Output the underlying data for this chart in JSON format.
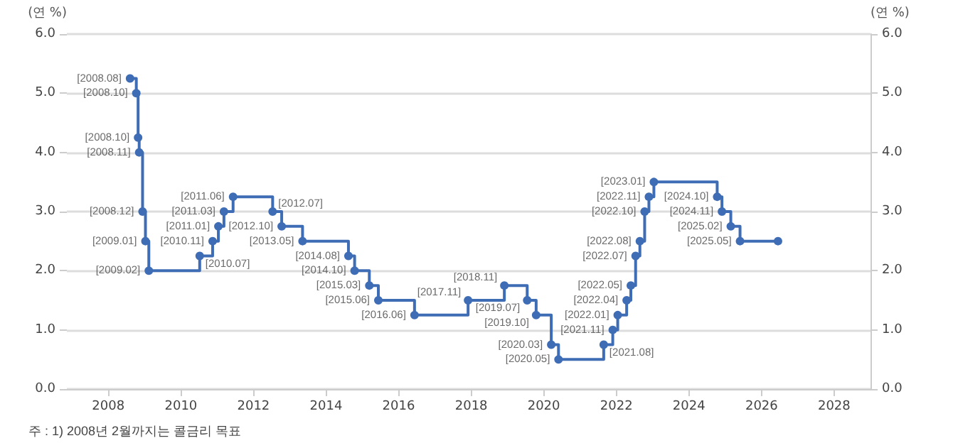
{
  "chart_data": {
    "type": "step",
    "ylabel": "(연 %)",
    "y2label": "(연 %)",
    "annotations": [
      "주 : 1) 2008년 2월까지는 콜금리 목표",
      {
        "text": "[2008.08]",
        "x": "2008-08-07",
        "y": 5.25
      },
      {
        "text": "[2008.10]",
        "x": "2008-10-09",
        "y": 5.0
      },
      {
        "text": "[2008.10]",
        "x": "2008-10-27",
        "y": 4.25
      },
      {
        "text": "[2008.11]",
        "x": "2008-11-07",
        "y": 4.0
      },
      {
        "text": "[2008.12]",
        "x": "2008-12-11",
        "y": 3.0
      },
      {
        "text": "[2009.01]",
        "x": "2009-01-09",
        "y": 2.5
      },
      {
        "text": "[2009.02]",
        "x": "2009-02-12",
        "y": 2.0
      },
      {
        "text": "[2010.07]",
        "x": "2010-07-09",
        "y": 2.25
      },
      {
        "text": "[2010.11]",
        "x": "2010-11-16",
        "y": 2.5
      },
      {
        "text": "[2011.01]",
        "x": "2011-01-13",
        "y": 2.75
      },
      {
        "text": "[2011.03]",
        "x": "2011-03-10",
        "y": 3.0
      },
      {
        "text": "[2011.06]",
        "x": "2011-06-10",
        "y": 3.25
      },
      {
        "text": "[2012.07]",
        "x": "2012-07-12",
        "y": 3.0
      },
      {
        "text": "[2012.10]",
        "x": "2012-10-11",
        "y": 2.75
      },
      {
        "text": "[2013.05]",
        "x": "2013-05-09",
        "y": 2.5
      },
      {
        "text": "[2014.08]",
        "x": "2014-08-14",
        "y": 2.25
      },
      {
        "text": "[2014.10]",
        "x": "2014-10-15",
        "y": 2.0
      },
      {
        "text": "[2015.03]",
        "x": "2015-03-12",
        "y": 1.75
      },
      {
        "text": "[2015.06]",
        "x": "2015-06-11",
        "y": 1.5
      },
      {
        "text": "[2016.06]",
        "x": "2016-06-09",
        "y": 1.25
      },
      {
        "text": "[2017.11]",
        "x": "2017-11-30",
        "y": 1.5
      },
      {
        "text": "[2018.11]",
        "x": "2018-11-30",
        "y": 1.75
      },
      {
        "text": "[2019.07]",
        "x": "2019-07-18",
        "y": 1.5
      },
      {
        "text": "[2019.10]",
        "x": "2019-10-16",
        "y": 1.25
      },
      {
        "text": "[2020.03]",
        "x": "2020-03-16",
        "y": 0.75
      },
      {
        "text": "[2020.05]",
        "x": "2020-05-28",
        "y": 0.5
      },
      {
        "text": "[2021.08]",
        "x": "2021-08-26",
        "y": 0.75
      },
      {
        "text": "[2021.11]",
        "x": "2021-11-25",
        "y": 1.0
      },
      {
        "text": "[2022.01]",
        "x": "2022-01-14",
        "y": 1.25
      },
      {
        "text": "[2022.04]",
        "x": "2022-04-14",
        "y": 1.5
      },
      {
        "text": "[2022.05]",
        "x": "2022-05-26",
        "y": 1.75
      },
      {
        "text": "[2022.07]",
        "x": "2022-07-13",
        "y": 2.25
      },
      {
        "text": "[2022.08]",
        "x": "2022-08-25",
        "y": 2.5
      },
      {
        "text": "[2022.10]",
        "x": "2022-10-12",
        "y": 3.0
      },
      {
        "text": "[2022.11]",
        "x": "2022-11-24",
        "y": 3.25
      },
      {
        "text": "[2023.01]",
        "x": "2023-01-13",
        "y": 3.5
      },
      {
        "text": "[2024.10]",
        "x": "2024-10-11",
        "y": 3.25
      },
      {
        "text": "[2024.11]",
        "x": "2024-11-28",
        "y": 3.0
      },
      {
        "text": "[2025.02]",
        "x": "2025-02-25",
        "y": 2.75
      },
      {
        "text": "[2025.05]",
        "x": "2025-05-29",
        "y": 2.5
      }
    ],
    "x": [
      "2008-08-07",
      "2008-10-09",
      "2008-10-27",
      "2008-11-07",
      "2008-12-11",
      "2009-01-09",
      "2009-02-12",
      "2010-07-09",
      "2010-11-16",
      "2011-01-13",
      "2011-03-10",
      "2011-06-10",
      "2012-07-12",
      "2012-10-11",
      "2013-05-09",
      "2014-08-14",
      "2014-10-15",
      "2015-03-12",
      "2015-06-11",
      "2016-06-09",
      "2017-11-30",
      "2018-11-30",
      "2019-07-18",
      "2019-10-16",
      "2020-03-16",
      "2020-05-28",
      "2021-08-26",
      "2021-11-25",
      "2022-01-14",
      "2022-04-14",
      "2022-05-26",
      "2022-07-13",
      "2022-08-25",
      "2022-10-12",
      "2022-11-24",
      "2023-01-13",
      "2024-10-11",
      "2024-11-28",
      "2025-02-25",
      "2025-05-29",
      "2026-06-15"
    ],
    "series": [
      {
        "color": "#3f6db5",
        "values": [
          5.25,
          5.0,
          4.25,
          4.0,
          3.0,
          2.5,
          2.0,
          2.25,
          2.5,
          2.75,
          3.0,
          3.25,
          3.0,
          2.75,
          2.5,
          2.25,
          2.0,
          1.75,
          1.5,
          1.25,
          1.5,
          1.75,
          1.5,
          1.25,
          0.75,
          0.5,
          0.75,
          1.0,
          1.25,
          1.5,
          1.75,
          2.25,
          2.5,
          3.0,
          3.25,
          3.5,
          3.25,
          3.0,
          2.75,
          2.5,
          2.5
        ]
      }
    ],
    "xlim": [
      "2006-11-10",
      "2029-01-01"
    ],
    "xticks": [
      "2008",
      "2010",
      "2012",
      "2014",
      "2016",
      "2018",
      "2020",
      "2022",
      "2024",
      "2026",
      "2028"
    ],
    "ylim": [
      0,
      6
    ],
    "yticks": [
      {
        "value": 0,
        "label": "0.0"
      },
      {
        "value": 1,
        "label": "1.0"
      },
      {
        "value": 2,
        "label": "2.0"
      },
      {
        "value": 3,
        "label": "3.0"
      },
      {
        "value": 4,
        "label": "4.0"
      },
      {
        "value": 5,
        "label": "5.0"
      },
      {
        "value": 6,
        "label": "6.0"
      }
    ],
    "y2lim": [
      0,
      6
    ],
    "y2ticks": [
      {
        "value": 0,
        "label": "0.0"
      },
      {
        "value": 1,
        "label": "1.0"
      },
      {
        "value": 2,
        "label": "2.0"
      },
      {
        "value": 3,
        "label": "3.0"
      },
      {
        "value": 4,
        "label": "4.0"
      },
      {
        "value": 5,
        "label": "5.0"
      },
      {
        "value": 6,
        "label": "6.0"
      }
    ],
    "grid": "y",
    "marker": "circle",
    "line_style": "solid"
  }
}
